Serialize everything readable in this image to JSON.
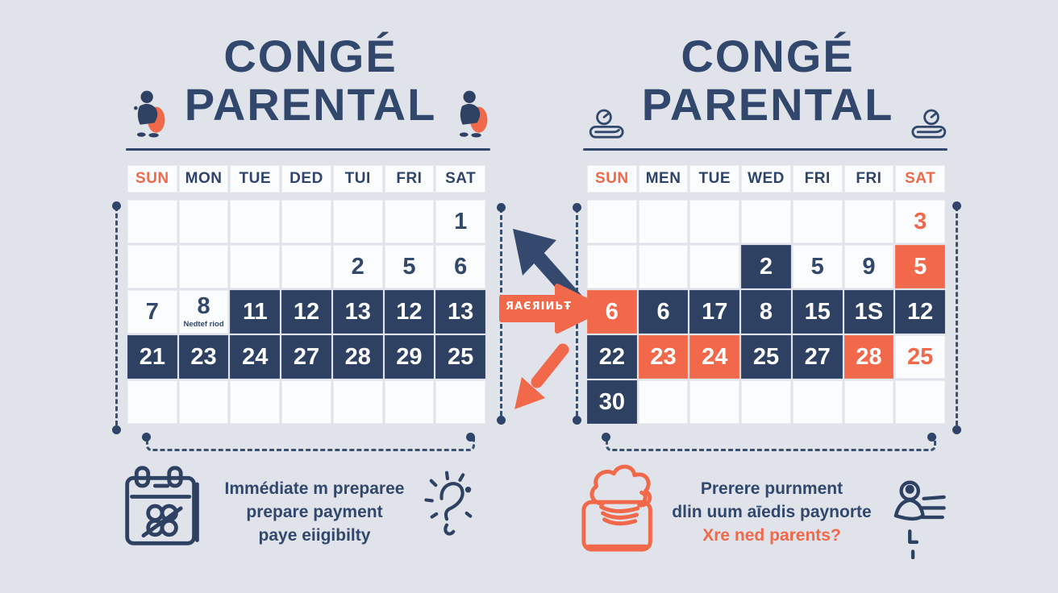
{
  "colors": {
    "background": "#e0e3ea",
    "navy": "#31476b",
    "cell_dark": "#2e4163",
    "orange": "#f2684a",
    "cell_white": "#fbfcfe"
  },
  "left_panel": {
    "title_line1": "CONGÉ",
    "title_line2": "PARENTAL",
    "side_icon": "parent-child-icon",
    "weekdays": [
      {
        "label": "SUN",
        "accent": true
      },
      {
        "label": "MON"
      },
      {
        "label": "TUE"
      },
      {
        "label": "DED"
      },
      {
        "label": "TUI"
      },
      {
        "label": "FRI"
      },
      {
        "label": "SAT"
      }
    ],
    "rows": [
      [
        {},
        {},
        {},
        {},
        {},
        {},
        {
          "text": "1"
        }
      ],
      [
        {},
        {},
        {},
        {},
        {
          "text": "2"
        },
        {
          "text": "5"
        },
        {
          "text": "6"
        }
      ],
      [
        {
          "text": "7"
        },
        {
          "text": "8",
          "sub": "Nedtef riod"
        },
        {
          "text": "11",
          "style": "dark"
        },
        {
          "text": "12",
          "style": "dark"
        },
        {
          "text": "13",
          "style": "dark"
        },
        {
          "text": "12",
          "style": "dark"
        },
        {
          "text": "13",
          "style": "dark"
        }
      ],
      [
        {
          "text": "21",
          "style": "dark"
        },
        {
          "text": "23",
          "style": "dark"
        },
        {
          "text": "24",
          "style": "dark"
        },
        {
          "text": "27",
          "style": "dark"
        },
        {
          "text": "28",
          "style": "dark"
        },
        {
          "text": "29",
          "style": "dark"
        },
        {
          "text": "25",
          "style": "dark"
        }
      ],
      [
        {},
        {},
        {},
        {},
        {},
        {},
        {}
      ]
    ],
    "caption_lines": [
      "Immédiate m preparee",
      "prepare payment",
      "paye eiigibilty"
    ],
    "footer_icons": [
      "calendar-doodle-icon",
      "sparkle-question-icon"
    ]
  },
  "right_panel": {
    "title_line1": "CONGÉ",
    "title_line2": "PARENTAL",
    "side_icon": "alarm-clock-icon",
    "weekdays": [
      {
        "label": "SUN",
        "accent": true
      },
      {
        "label": "MEN"
      },
      {
        "label": "TUE"
      },
      {
        "label": "WED"
      },
      {
        "label": "FRI"
      },
      {
        "label": "FRI"
      },
      {
        "label": "SAT",
        "accent": true
      }
    ],
    "rows": [
      [
        {},
        {},
        {},
        {},
        {},
        {},
        {
          "text": "3",
          "style": "orange-num"
        }
      ],
      [
        {},
        {},
        {},
        {
          "text": "2",
          "style": "dark"
        },
        {
          "text": "5"
        },
        {
          "text": "9"
        },
        {
          "text": "5",
          "style": "orange"
        }
      ],
      [
        {
          "text": "6",
          "style": "orange"
        },
        {
          "text": "6",
          "style": "dark"
        },
        {
          "text": "17",
          "style": "dark"
        },
        {
          "text": "8",
          "style": "dark"
        },
        {
          "text": "15",
          "style": "dark"
        },
        {
          "text": "1S",
          "style": "dark"
        },
        {
          "text": "12",
          "style": "dark"
        }
      ],
      [
        {
          "text": "22",
          "style": "dark"
        },
        {
          "text": "23",
          "style": "orange"
        },
        {
          "text": "24",
          "style": "orange"
        },
        {
          "text": "25",
          "style": "dark"
        },
        {
          "text": "27",
          "style": "dark"
        },
        {
          "text": "28",
          "style": "orange"
        },
        {
          "text": "25",
          "style": "orange-num"
        }
      ],
      [
        {
          "text": "30",
          "style": "dark"
        },
        {},
        {},
        {},
        {},
        {},
        {}
      ]
    ],
    "caption_lines": [
      "Prerere purnment",
      "dlin uum aīedis paynorte",
      "Xre ned parents?"
    ],
    "footer_icons": [
      "money-pouch-icon",
      "parent-checklist-icon"
    ]
  },
  "middle": {
    "up_arrow": "navy-up-left-arrow",
    "right_arrow_label": "ЯAЄЯIИЬŦ",
    "down_arrow": "orange-down-left-arrow"
  }
}
